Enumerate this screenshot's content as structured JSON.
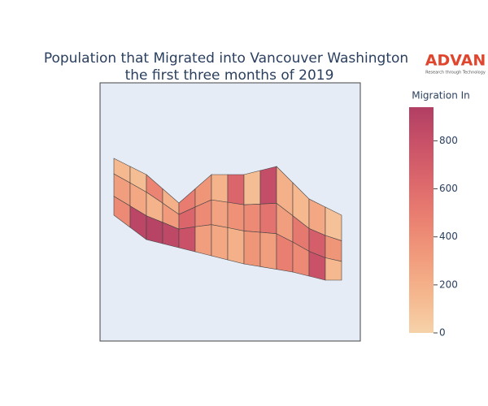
{
  "chart_data": {
    "type": "choropleth",
    "title": [
      "Population that Migrated into Vancouver Washington",
      "the first three months of 2019"
    ],
    "logo": {
      "name": "ADVAN",
      "tagline": "Research through Technology"
    },
    "colorbar": {
      "title": "Migration In",
      "range": [
        0,
        940
      ],
      "ticks": [
        0,
        200,
        400,
        600,
        800
      ]
    },
    "colorscale": [
      "#f6d2a9",
      "#f5b78e",
      "#f19c7c",
      "#ea8171",
      "#dd686c",
      "#ca5268",
      "#b13f64"
    ],
    "background": "#e5ecf6",
    "values": [
      150,
      300,
      420,
      120,
      250,
      880,
      450,
      180,
      900,
      200,
      320,
      860,
      500,
      650,
      780,
      350,
      420,
      300,
      180,
      280,
      250,
      650,
      380,
      200,
      120,
      420,
      350,
      820,
      560,
      300,
      200,
      300,
      480,
      150,
      520,
      420,
      250,
      700,
      780,
      100,
      350,
      150
    ]
  }
}
